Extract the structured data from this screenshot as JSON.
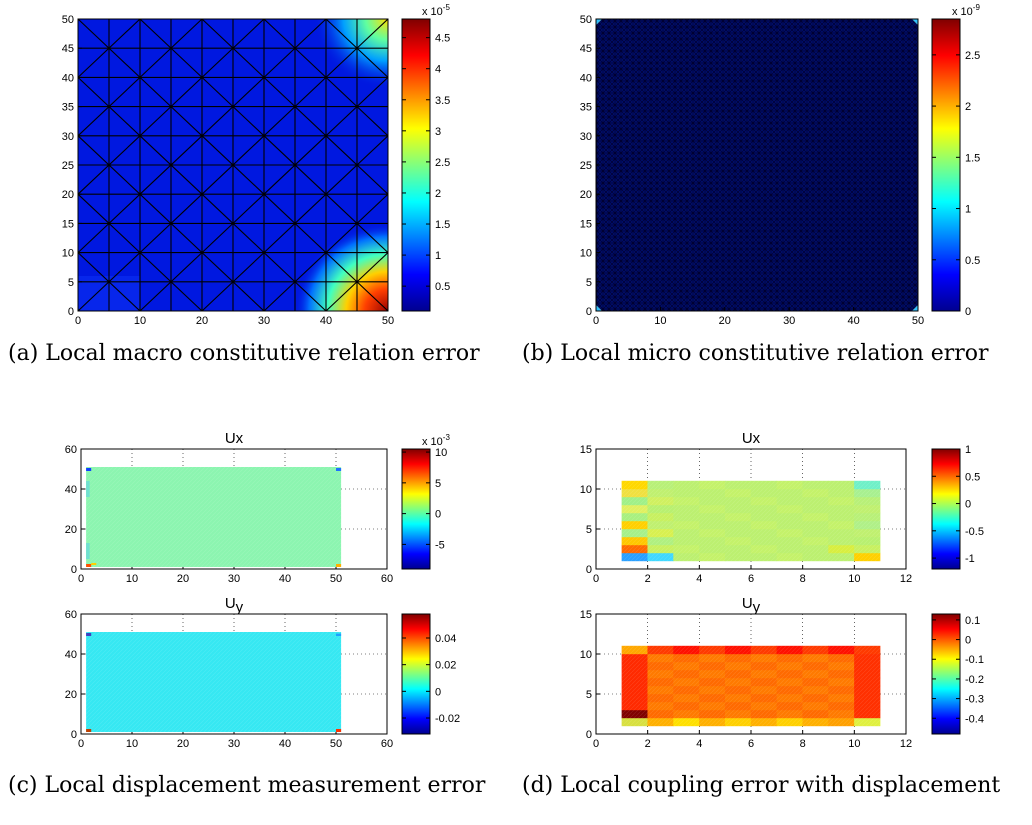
{
  "colors": {
    "jet_dark_blue": "#00008f",
    "jet_red": "#800000"
  },
  "captions": {
    "a": "(a) Local macro constitutive relation error",
    "b": "(b) Local micro constitutive relation error",
    "c": "(c) Local displacement measurement error",
    "d": "(d) Local coupling error with displacement"
  },
  "chart_data": [
    {
      "id": "a",
      "type": "heatmap",
      "xlim": [
        0,
        50
      ],
      "ylim": [
        0,
        50
      ],
      "xticks": [
        "0",
        "10",
        "20",
        "30",
        "40",
        "50"
      ],
      "yticks": [
        "0",
        "5",
        "10",
        "15",
        "20",
        "25",
        "30",
        "35",
        "40",
        "45",
        "50"
      ],
      "colorbar": {
        "multiplier": "x 10",
        "exponent": "-5",
        "range": [
          0.1,
          4.8
        ],
        "ticks": [
          "0.5",
          "1",
          "1.5",
          "2",
          "2.5",
          "3",
          "3.5",
          "4",
          "4.5"
        ],
        "tick_values": [
          0.5,
          1,
          1.5,
          2,
          2.5,
          3,
          3.5,
          4,
          4.5
        ]
      },
      "mesh": "coarse triangular mesh, 10x10 cells with diagonals",
      "hotspots": [
        "bottom-right corner (max, red)",
        "top-right corner (yellow)"
      ]
    },
    {
      "id": "b",
      "type": "heatmap",
      "xlim": [
        0,
        50
      ],
      "ylim": [
        0,
        50
      ],
      "xticks": [
        "0",
        "10",
        "20",
        "30",
        "40",
        "50"
      ],
      "yticks": [
        "0",
        "5",
        "10",
        "15",
        "20",
        "25",
        "30",
        "35",
        "40",
        "45",
        "50"
      ],
      "colorbar": {
        "multiplier": "x 10",
        "exponent": "-9",
        "range": [
          0,
          2.85
        ],
        "ticks": [
          "0",
          "0.5",
          "1",
          "1.5",
          "2",
          "2.5"
        ],
        "tick_values": [
          0,
          0.5,
          1,
          1.5,
          2,
          2.5
        ]
      },
      "mesh": "fine triangular mesh",
      "hotspots": [
        "four corners (small)"
      ]
    },
    {
      "id": "c-ux",
      "type": "heatmap",
      "title": "Ux",
      "xlim": [
        0,
        60
      ],
      "ylim": [
        0,
        60
      ],
      "xticks": [
        "0",
        "10",
        "20",
        "30",
        "40",
        "50",
        "60"
      ],
      "yticks": [
        "0",
        "20",
        "40",
        "60"
      ],
      "grid": "dotted",
      "colorbar": {
        "multiplier": "x 10",
        "exponent": "-3",
        "range": [
          -9,
          10.5
        ],
        "ticks": [
          "-5",
          "0",
          "5",
          "10"
        ],
        "tick_values": [
          -5,
          0,
          5,
          10
        ]
      }
    },
    {
      "id": "c-uy",
      "type": "heatmap",
      "title": "Uy",
      "xlim": [
        0,
        60
      ],
      "ylim": [
        0,
        60
      ],
      "xticks": [
        "0",
        "10",
        "20",
        "30",
        "40",
        "50",
        "60"
      ],
      "yticks": [
        "0",
        "20",
        "40",
        "60"
      ],
      "grid": "dotted",
      "colorbar": {
        "range": [
          -0.032,
          0.058
        ],
        "ticks": [
          "-0.02",
          "0",
          "0.02",
          "0.04"
        ],
        "tick_values": [
          -0.02,
          0,
          0.02,
          0.04
        ]
      }
    },
    {
      "id": "d-ux",
      "type": "heatmap",
      "title": "Ux",
      "xlim": [
        0,
        12
      ],
      "ylim": [
        0,
        15
      ],
      "xticks": [
        "0",
        "2",
        "4",
        "6",
        "8",
        "10",
        "12"
      ],
      "yticks": [
        "0",
        "5",
        "10",
        "15"
      ],
      "grid": "dotted",
      "colorbar": {
        "range": [
          -1.2,
          1.0
        ],
        "ticks": [
          "-1",
          "-0.5",
          "0",
          "0.5",
          "1"
        ],
        "tick_values": [
          -1,
          -0.5,
          0,
          0.5,
          1
        ]
      }
    },
    {
      "id": "d-uy",
      "type": "heatmap",
      "title": "Uy",
      "xlim": [
        0,
        12
      ],
      "ylim": [
        0,
        15
      ],
      "xticks": [
        "0",
        "2",
        "4",
        "6",
        "8",
        "10",
        "12"
      ],
      "yticks": [
        "0",
        "5",
        "10",
        "15"
      ],
      "grid": "dotted",
      "colorbar": {
        "range": [
          -0.48,
          0.13
        ],
        "ticks": [
          "-0.4",
          "-0.3",
          "-0.2",
          "-0.1",
          "0",
          "0.1"
        ],
        "tick_values": [
          -0.4,
          -0.3,
          -0.2,
          -0.1,
          0,
          0.1
        ]
      }
    }
  ]
}
